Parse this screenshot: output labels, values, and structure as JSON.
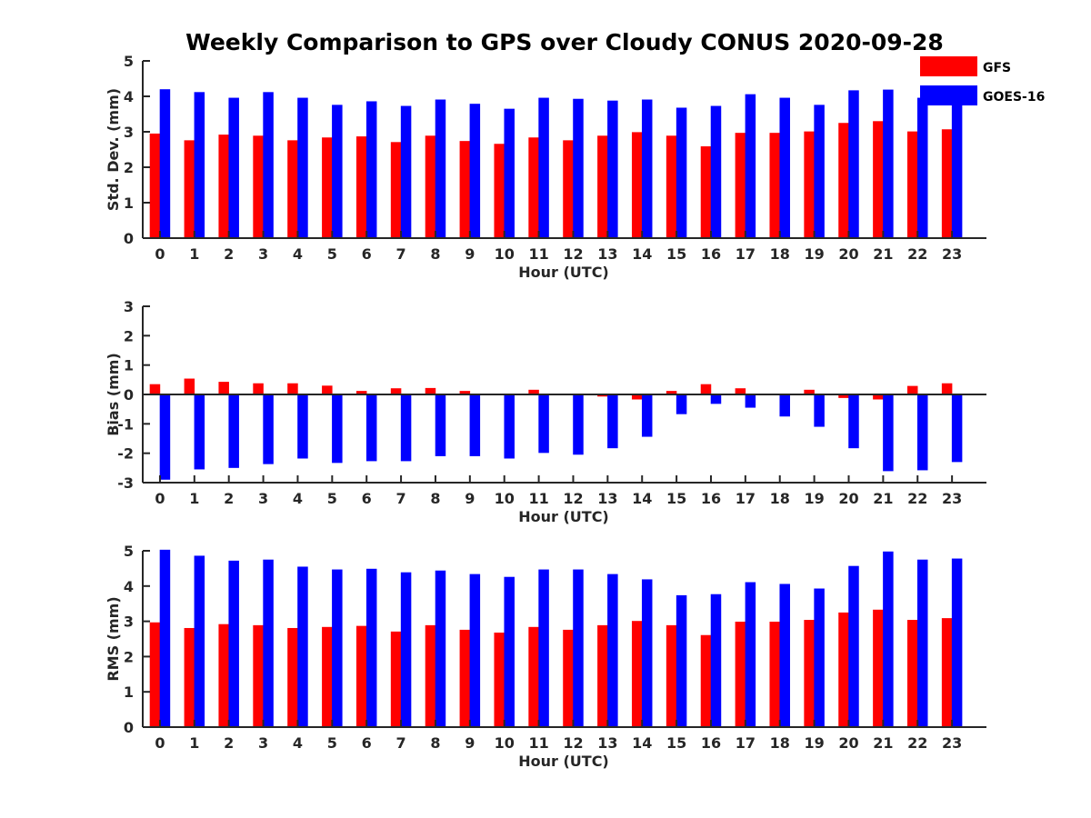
{
  "title": "Weekly Comparison to GPS over Cloudy CONUS 2020-09-28",
  "colors": {
    "GFS": "#ff0000",
    "GOES-16": "#0000ff"
  },
  "legend": [
    "GFS",
    "GOES-16"
  ],
  "chart_data": [
    {
      "type": "bar",
      "name": "std",
      "xlabel": "Hour (UTC)",
      "ylabel": "Std. Dev. (mm)",
      "ylim": [
        0,
        5
      ],
      "yticks": [
        "0",
        "1",
        "2",
        "3",
        "4",
        "5"
      ],
      "categories": [
        "0",
        "1",
        "2",
        "3",
        "4",
        "5",
        "6",
        "7",
        "8",
        "9",
        "10",
        "11",
        "12",
        "13",
        "14",
        "15",
        "16",
        "17",
        "18",
        "19",
        "20",
        "21",
        "22",
        "23"
      ],
      "series": [
        {
          "name": "GFS",
          "values": [
            2.95,
            2.76,
            2.92,
            2.89,
            2.76,
            2.84,
            2.87,
            2.71,
            2.89,
            2.74,
            2.66,
            2.84,
            2.76,
            2.89,
            2.99,
            2.89,
            2.59,
            2.97,
            2.97,
            3.01,
            3.25,
            3.3,
            3.01,
            3.07
          ]
        },
        {
          "name": "GOES-16",
          "values": [
            4.2,
            4.12,
            3.96,
            4.12,
            3.96,
            3.76,
            3.86,
            3.73,
            3.91,
            3.79,
            3.65,
            3.96,
            3.93,
            3.88,
            3.91,
            3.68,
            3.73,
            4.06,
            3.96,
            3.76,
            4.17,
            4.19,
            3.96,
            3.96
          ]
        }
      ],
      "grid": false
    },
    {
      "type": "bar",
      "name": "bias",
      "xlabel": "Hour (UTC)",
      "ylabel": "Bias (mm)",
      "ylim": [
        -3,
        3
      ],
      "yticks": [
        "-3",
        "-2",
        "-1",
        "0",
        "1",
        "2",
        "3"
      ],
      "categories": [
        "0",
        "1",
        "2",
        "3",
        "4",
        "5",
        "6",
        "7",
        "8",
        "9",
        "10",
        "11",
        "12",
        "13",
        "14",
        "15",
        "16",
        "17",
        "18",
        "19",
        "20",
        "21",
        "22",
        "23"
      ],
      "series": [
        {
          "name": "GFS",
          "values": [
            0.35,
            0.54,
            0.43,
            0.38,
            0.38,
            0.3,
            0.12,
            0.21,
            0.22,
            0.12,
            0.0,
            0.16,
            0.0,
            -0.07,
            -0.17,
            0.12,
            0.35,
            0.21,
            0.03,
            0.16,
            -0.12,
            -0.17,
            0.29,
            0.38
          ]
        },
        {
          "name": "GOES-16",
          "values": [
            -2.9,
            -2.55,
            -2.5,
            -2.37,
            -2.18,
            -2.33,
            -2.27,
            -2.27,
            -2.1,
            -2.1,
            -2.18,
            -1.99,
            -2.05,
            -1.83,
            -1.44,
            -0.67,
            -0.32,
            -0.45,
            -0.75,
            -1.1,
            -1.83,
            -2.61,
            -2.58,
            -2.3
          ]
        }
      ],
      "grid": false
    },
    {
      "type": "bar",
      "name": "rms",
      "xlabel": "Hour (UTC)",
      "ylabel": "RMS (mm)",
      "ylim": [
        0,
        5
      ],
      "yticks": [
        "0",
        "1",
        "2",
        "3",
        "4",
        "5"
      ],
      "categories": [
        "0",
        "1",
        "2",
        "3",
        "4",
        "5",
        "6",
        "7",
        "8",
        "9",
        "10",
        "11",
        "12",
        "13",
        "14",
        "15",
        "16",
        "17",
        "18",
        "19",
        "20",
        "21",
        "22",
        "23"
      ],
      "series": [
        {
          "name": "GFS",
          "values": [
            2.97,
            2.81,
            2.92,
            2.89,
            2.81,
            2.84,
            2.87,
            2.71,
            2.89,
            2.76,
            2.68,
            2.84,
            2.76,
            2.89,
            3.01,
            2.89,
            2.61,
            2.99,
            2.99,
            3.04,
            3.25,
            3.33,
            3.04,
            3.09
          ]
        },
        {
          "name": "GOES-16",
          "values": [
            5.03,
            4.86,
            4.72,
            4.75,
            4.55,
            4.47,
            4.49,
            4.39,
            4.44,
            4.34,
            4.26,
            4.47,
            4.47,
            4.34,
            4.19,
            3.74,
            3.77,
            4.11,
            4.06,
            3.93,
            4.57,
            4.98,
            4.75,
            4.78
          ]
        }
      ],
      "grid": false
    }
  ]
}
